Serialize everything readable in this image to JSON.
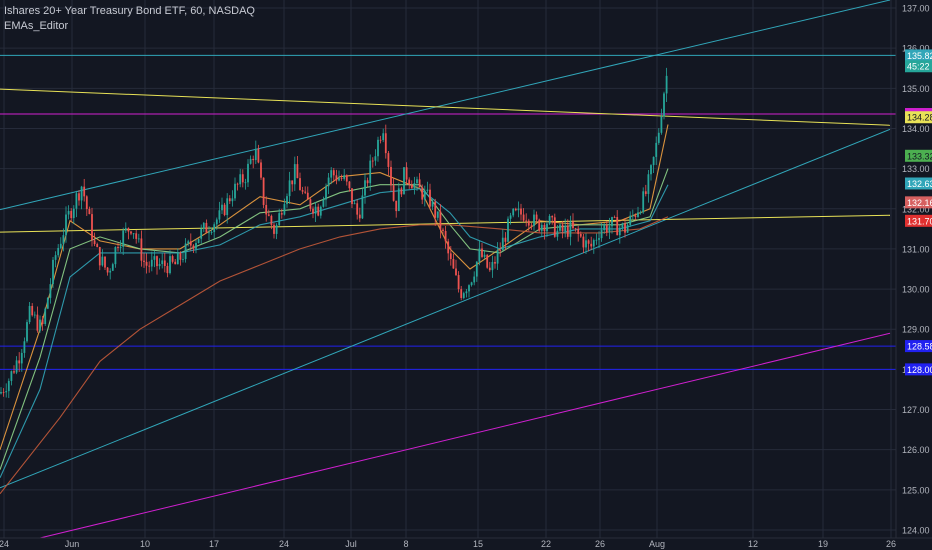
{
  "header": {
    "symbol_line": "Ishares 20+ Year Treasury Bond ETF, 60, NASDAQ",
    "indicator": "EMAs_Editor"
  },
  "colors": {
    "background": "#131722",
    "grid": "#262b3a",
    "up_candle": "#26a69a",
    "down_candle": "#ef5350",
    "yellow_line": "#e8e257",
    "cyan_line": "#31a6b9",
    "magenta_line": "#d020d0",
    "blue_line": "#2121f0"
  },
  "chart_data": {
    "type": "candlestick",
    "title": "Ishares 20+ Year Treasury Bond ETF, 60, NASDAQ",
    "x_tick_labels": [
      "24",
      "Jun",
      "10",
      "17",
      "24",
      "Jul",
      "8",
      "15",
      "22",
      "26",
      "Aug",
      "12",
      "19",
      "26"
    ],
    "y_tick_labels": [
      "124.00",
      "125.00",
      "126.00",
      "127.00",
      "128.00",
      "129.00",
      "130.00",
      "131.00",
      "132.00",
      "133.00",
      "134.00",
      "135.00",
      "136.00",
      "137.00"
    ],
    "ylim": [
      123.8,
      137.2
    ],
    "price_labels": [
      {
        "text": "135.82",
        "value": 135.82,
        "color": "#31a6b9"
      },
      {
        "text": "45:22",
        "value": 135.55,
        "color": "#26a69a"
      },
      {
        "text": "134.36",
        "value": 134.36,
        "color": "#d020d0"
      },
      {
        "text": "134.31",
        "value": 134.31,
        "color": "#d020d0"
      },
      {
        "text": "134.28",
        "value": 134.28,
        "color": "#e8e257"
      },
      {
        "text": "133.32",
        "value": 133.32,
        "color": "#4caf50"
      },
      {
        "text": "132.63",
        "value": 132.63,
        "color": "#31a6b9"
      },
      {
        "text": "132.16",
        "value": 132.16,
        "color": "#d66060"
      },
      {
        "text": "131.70",
        "value": 131.7,
        "color": "#e03030"
      },
      {
        "text": "128.58",
        "value": 128.58,
        "color": "#2121f0"
      },
      {
        "text": "128.00",
        "value": 128.0,
        "color": "#2121f0"
      }
    ],
    "horizontal_lines": [
      {
        "value": 135.82,
        "color": "#31a6b9"
      },
      {
        "value": 134.36,
        "color": "#d020d0"
      },
      {
        "value": 128.58,
        "color": "#2121f0"
      },
      {
        "value": 128.0,
        "color": "#2121f0"
      }
    ],
    "trend_lines": [
      {
        "name": "upper channel",
        "color": "#31a6b9",
        "from": [
          0,
          131.98
        ],
        "to": [
          890,
          137.2
        ]
      },
      {
        "name": "lower channel",
        "color": "#31a6b9",
        "from": [
          0,
          125.05
        ],
        "to": [
          890,
          133.98
        ]
      },
      {
        "name": "yellow resistance",
        "color": "#e8e257",
        "from": [
          0,
          134.98
        ],
        "to": [
          890,
          134.08
        ]
      },
      {
        "name": "yellow support",
        "color": "#e8e257",
        "from": [
          0,
          131.42
        ],
        "to": [
          890,
          131.84
        ]
      },
      {
        "name": "magenta support",
        "color": "#d020d0",
        "from": [
          40,
          123.8
        ],
        "to": [
          890,
          128.9
        ]
      }
    ],
    "ema_series": [
      {
        "color": "#f0a040",
        "points": [
          [
            0,
            126.0
          ],
          [
            40,
            129.0
          ],
          [
            70,
            131.7
          ],
          [
            100,
            131.2
          ],
          [
            140,
            131.0
          ],
          [
            180,
            131.0
          ],
          [
            220,
            131.6
          ],
          [
            260,
            132.3
          ],
          [
            300,
            132.1
          ],
          [
            340,
            132.8
          ],
          [
            380,
            132.9
          ],
          [
            420,
            132.5
          ],
          [
            450,
            131.0
          ],
          [
            470,
            130.5
          ],
          [
            500,
            131.0
          ],
          [
            540,
            131.7
          ],
          [
            580,
            131.6
          ],
          [
            620,
            131.7
          ],
          [
            650,
            132.0
          ],
          [
            668,
            134.1
          ]
        ]
      },
      {
        "color": "#8ed48a",
        "points": [
          [
            0,
            125.5
          ],
          [
            40,
            128.3
          ],
          [
            70,
            131.0
          ],
          [
            100,
            131.3
          ],
          [
            140,
            131.0
          ],
          [
            180,
            130.9
          ],
          [
            220,
            131.3
          ],
          [
            260,
            131.9
          ],
          [
            300,
            132.0
          ],
          [
            340,
            132.4
          ],
          [
            380,
            132.6
          ],
          [
            420,
            132.6
          ],
          [
            450,
            131.6
          ],
          [
            470,
            131.0
          ],
          [
            500,
            130.9
          ],
          [
            540,
            131.5
          ],
          [
            580,
            131.6
          ],
          [
            620,
            131.6
          ],
          [
            650,
            131.8
          ],
          [
            668,
            133.0
          ]
        ]
      },
      {
        "color": "#31a6b9",
        "points": [
          [
            0,
            125.3
          ],
          [
            40,
            127.5
          ],
          [
            70,
            130.3
          ],
          [
            100,
            130.9
          ],
          [
            140,
            130.9
          ],
          [
            180,
            130.9
          ],
          [
            220,
            131.1
          ],
          [
            260,
            131.6
          ],
          [
            300,
            131.8
          ],
          [
            340,
            132.1
          ],
          [
            380,
            132.4
          ],
          [
            420,
            132.5
          ],
          [
            450,
            131.9
          ],
          [
            470,
            131.3
          ],
          [
            500,
            131.0
          ],
          [
            540,
            131.3
          ],
          [
            580,
            131.5
          ],
          [
            620,
            131.5
          ],
          [
            650,
            131.7
          ],
          [
            668,
            132.6
          ]
        ]
      },
      {
        "color": "#c45a3a",
        "points": [
          [
            0,
            124.9
          ],
          [
            60,
            126.8
          ],
          [
            100,
            128.2
          ],
          [
            140,
            129.0
          ],
          [
            180,
            129.6
          ],
          [
            220,
            130.2
          ],
          [
            260,
            130.6
          ],
          [
            300,
            131.0
          ],
          [
            340,
            131.3
          ],
          [
            380,
            131.5
          ],
          [
            420,
            131.6
          ],
          [
            450,
            131.6
          ],
          [
            500,
            131.5
          ],
          [
            540,
            131.4
          ],
          [
            600,
            131.4
          ],
          [
            640,
            131.5
          ],
          [
            668,
            131.8
          ]
        ]
      }
    ],
    "candle_path": [
      [
        0,
        127.4
      ],
      [
        10,
        127.8
      ],
      [
        20,
        128.4
      ],
      [
        30,
        129.4
      ],
      [
        42,
        129.0
      ],
      [
        55,
        130.8
      ],
      [
        68,
        131.8
      ],
      [
        82,
        132.6
      ],
      [
        95,
        131.0
      ],
      [
        108,
        130.4
      ],
      [
        118,
        131.2
      ],
      [
        132,
        131.6
      ],
      [
        145,
        130.6
      ],
      [
        160,
        130.6
      ],
      [
        175,
        130.6
      ],
      [
        190,
        131.1
      ],
      [
        205,
        131.5
      ],
      [
        220,
        131.8
      ],
      [
        232,
        132.4
      ],
      [
        245,
        132.8
      ],
      [
        255,
        133.5
      ],
      [
        265,
        132.0
      ],
      [
        275,
        131.4
      ],
      [
        285,
        132.4
      ],
      [
        295,
        132.9
      ],
      [
        305,
        132.2
      ],
      [
        318,
        132.0
      ],
      [
        330,
        132.9
      ],
      [
        345,
        132.7
      ],
      [
        358,
        131.8
      ],
      [
        370,
        133.0
      ],
      [
        383,
        134.1
      ],
      [
        395,
        132.0
      ],
      [
        405,
        132.9
      ],
      [
        418,
        132.5
      ],
      [
        430,
        132.2
      ],
      [
        440,
        131.6
      ],
      [
        450,
        130.7
      ],
      [
        460,
        129.9
      ],
      [
        470,
        130.2
      ],
      [
        480,
        130.9
      ],
      [
        490,
        130.4
      ],
      [
        500,
        131.0
      ],
      [
        512,
        131.8
      ],
      [
        525,
        131.9
      ],
      [
        537,
        131.6
      ],
      [
        548,
        131.7
      ],
      [
        558,
        131.4
      ],
      [
        570,
        131.5
      ],
      [
        580,
        131.3
      ],
      [
        590,
        131.0
      ],
      [
        600,
        131.5
      ],
      [
        612,
        131.6
      ],
      [
        625,
        131.5
      ],
      [
        635,
        131.9
      ],
      [
        645,
        132.3
      ],
      [
        652,
        133.0
      ],
      [
        658,
        133.8
      ],
      [
        663,
        134.8
      ],
      [
        668,
        135.5
      ]
    ]
  }
}
